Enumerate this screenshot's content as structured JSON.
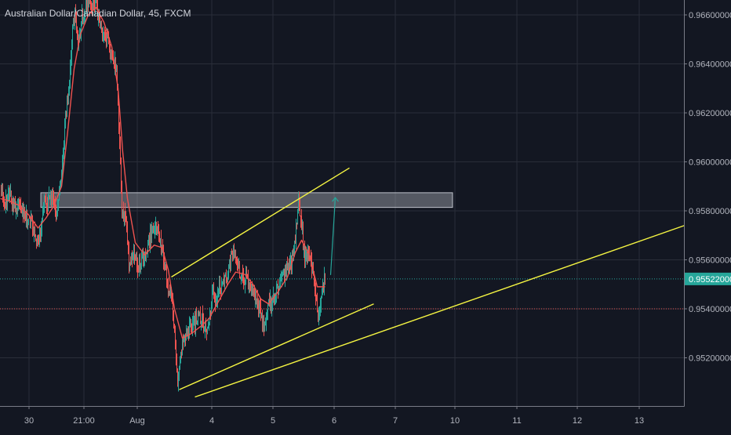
{
  "chart_data": {
    "type": "candlestick",
    "title": "Australian Dollar/Canadian Dollar, 45, FXCM",
    "x_tick_labels": [
      "30",
      "21:00",
      "Aug",
      "4",
      "5",
      "6",
      "7",
      "10",
      "11",
      "12",
      "13"
    ],
    "y_tick_labels": [
      "0.96600000",
      "0.96400000",
      "0.96200000",
      "0.96000000",
      "0.95800000",
      "0.95600000",
      "0.95400000",
      "0.95200000"
    ],
    "y_ticks": [
      0.966,
      0.964,
      0.962,
      0.96,
      0.958,
      0.956,
      0.954,
      0.952
    ],
    "ylim": [
      0.9503,
      0.9668
    ],
    "grid": true,
    "current_price": {
      "label": "0.95522000",
      "value": 0.95522
    },
    "reference_level": 0.954,
    "resistance_zone": {
      "low": 0.95814,
      "high": 0.95874
    },
    "colors": {
      "background": "#131722",
      "grid": "#2a2e39",
      "axis_text": "#b2b5be",
      "up_candle": "#26a69a",
      "down_candle": "#ef5350",
      "moving_average": "#ef5350",
      "trendlines": "#f5f542",
      "current_price_line": "#26a69a",
      "reference_line": "#ef5350",
      "projection_arrow": "#26a69a",
      "zone_fill": "#d1d4dc"
    },
    "waypoints": [
      [
        1,
        0.9588
      ],
      [
        6,
        0.9584
      ],
      [
        12,
        0.9586
      ],
      [
        20,
        0.9581
      ],
      [
        26,
        0.9583
      ],
      [
        32,
        0.9577
      ],
      [
        38,
        0.9576
      ],
      [
        42,
        0.9573
      ],
      [
        48,
        0.9566
      ],
      [
        52,
        0.9572
      ],
      [
        56,
        0.9585
      ],
      [
        60,
        0.9583
      ],
      [
        66,
        0.9586
      ],
      [
        72,
        0.958
      ],
      [
        78,
        0.9596
      ],
      [
        84,
        0.9622
      ],
      [
        88,
        0.9633
      ],
      [
        92,
        0.9656
      ],
      [
        96,
        0.9661
      ],
      [
        100,
        0.9648
      ],
      [
        104,
        0.9658
      ],
      [
        108,
        0.9662
      ],
      [
        112,
        0.9666
      ],
      [
        116,
        0.9666
      ],
      [
        122,
        0.9664
      ],
      [
        126,
        0.9658
      ],
      [
        130,
        0.9651
      ],
      [
        136,
        0.965
      ],
      [
        142,
        0.9642
      ],
      [
        148,
        0.9638
      ],
      [
        152,
        0.9608
      ],
      [
        155,
        0.958
      ],
      [
        160,
        0.9575
      ],
      [
        164,
        0.956
      ],
      [
        170,
        0.9563
      ],
      [
        176,
        0.9558
      ],
      [
        182,
        0.956
      ],
      [
        188,
        0.9566
      ],
      [
        194,
        0.9572
      ],
      [
        200,
        0.9573
      ],
      [
        206,
        0.9563
      ],
      [
        210,
        0.9558
      ],
      [
        214,
        0.9549
      ],
      [
        218,
        0.9545
      ],
      [
        222,
        0.953
      ],
      [
        226,
        0.9512
      ],
      [
        230,
        0.9522
      ],
      [
        236,
        0.953
      ],
      [
        242,
        0.9531
      ],
      [
        248,
        0.9534
      ],
      [
        254,
        0.9537
      ],
      [
        260,
        0.9533
      ],
      [
        264,
        0.953
      ],
      [
        270,
        0.9545
      ],
      [
        276,
        0.9545
      ],
      [
        282,
        0.955
      ],
      [
        288,
        0.9552
      ],
      [
        294,
        0.956
      ],
      [
        298,
        0.9563
      ],
      [
        302,
        0.9558
      ],
      [
        308,
        0.9553
      ],
      [
        314,
        0.9552
      ],
      [
        320,
        0.955
      ],
      [
        326,
        0.9545
      ],
      [
        332,
        0.9538
      ],
      [
        336,
        0.9532
      ],
      [
        342,
        0.9541
      ],
      [
        348,
        0.9543
      ],
      [
        354,
        0.9548
      ],
      [
        360,
        0.9552
      ],
      [
        366,
        0.9557
      ],
      [
        372,
        0.956
      ],
      [
        376,
        0.957
      ],
      [
        380,
        0.9582
      ],
      [
        384,
        0.9574
      ],
      [
        388,
        0.956
      ],
      [
        394,
        0.9562
      ],
      [
        398,
        0.9555
      ],
      [
        402,
        0.9547
      ],
      [
        406,
        0.9536
      ],
      [
        410,
        0.9548
      ],
      [
        414,
        0.9552
      ]
    ],
    "moving_average": [
      [
        0,
        0.9585
      ],
      [
        12,
        0.9584
      ],
      [
        25,
        0.9582
      ],
      [
        37,
        0.9578
      ],
      [
        48,
        0.9573
      ],
      [
        58,
        0.9577
      ],
      [
        68,
        0.9582
      ],
      [
        78,
        0.959
      ],
      [
        86,
        0.9613
      ],
      [
        94,
        0.9638
      ],
      [
        102,
        0.9652
      ],
      [
        112,
        0.966
      ],
      [
        122,
        0.9663
      ],
      [
        132,
        0.9657
      ],
      [
        142,
        0.9647
      ],
      [
        150,
        0.963
      ],
      [
        156,
        0.9604
      ],
      [
        162,
        0.9585
      ],
      [
        172,
        0.9567
      ],
      [
        184,
        0.9562
      ],
      [
        196,
        0.9566
      ],
      [
        206,
        0.9565
      ],
      [
        214,
        0.9556
      ],
      [
        222,
        0.954
      ],
      [
        232,
        0.9528
      ],
      [
        244,
        0.953
      ],
      [
        256,
        0.9533
      ],
      [
        266,
        0.9536
      ],
      [
        278,
        0.9543
      ],
      [
        290,
        0.955
      ],
      [
        300,
        0.9555
      ],
      [
        312,
        0.9554
      ],
      [
        322,
        0.955
      ],
      [
        332,
        0.9544
      ],
      [
        342,
        0.9542
      ],
      [
        354,
        0.9547
      ],
      [
        366,
        0.9553
      ],
      [
        376,
        0.9563
      ],
      [
        384,
        0.9568
      ],
      [
        394,
        0.9562
      ],
      [
        404,
        0.9549
      ],
      [
        414,
        0.9549
      ]
    ],
    "trendlines": [
      {
        "name": "upper-channel",
        "points": [
          [
            218,
            0.9553
          ],
          [
            445,
            0.95975
          ]
        ]
      },
      {
        "name": "lower-channel",
        "points": [
          [
            228,
            0.9507
          ],
          [
            476,
            0.9542
          ]
        ]
      },
      {
        "name": "long-support",
        "points": [
          [
            248,
            0.9504
          ],
          [
            872,
            0.9574
          ]
        ]
      }
    ],
    "projection_arrow": {
      "from": [
        421,
        0.95538
      ],
      "to": [
        427,
        0.95854
      ]
    }
  }
}
